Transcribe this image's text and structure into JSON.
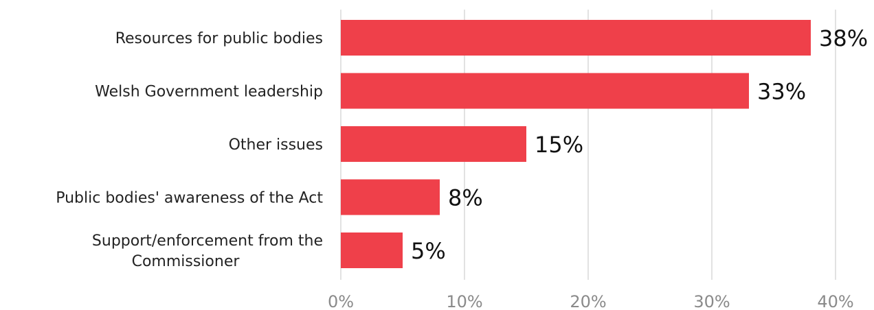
{
  "chart_data": {
    "type": "bar",
    "orientation": "horizontal",
    "categories": [
      "Resources for public bodies",
      "Welsh Government leadership",
      "Other issues",
      "Public bodies' awareness of the Act",
      "Support/enforcement from the Commissioner"
    ],
    "category_lines": [
      [
        "Resources for public bodies"
      ],
      [
        "Welsh Government leadership"
      ],
      [
        "Other issues"
      ],
      [
        "Public bodies' awareness of the Act"
      ],
      [
        "Support/enforcement from the",
        "Commissioner"
      ]
    ],
    "values": [
      38,
      33,
      15,
      8,
      5
    ],
    "data_labels": [
      "38%",
      "33%",
      "15%",
      "8%",
      "5%"
    ],
    "xlim": [
      0,
      40
    ],
    "x_ticks": [
      0,
      10,
      20,
      30,
      40
    ],
    "x_tick_labels": [
      "0%",
      "10%",
      "20%",
      "30%",
      "40%"
    ],
    "grid": true,
    "title": "",
    "xlabel": "",
    "ylabel": "",
    "colors": {
      "bar": "#ef404a",
      "grid": "#d9d9d9"
    }
  }
}
